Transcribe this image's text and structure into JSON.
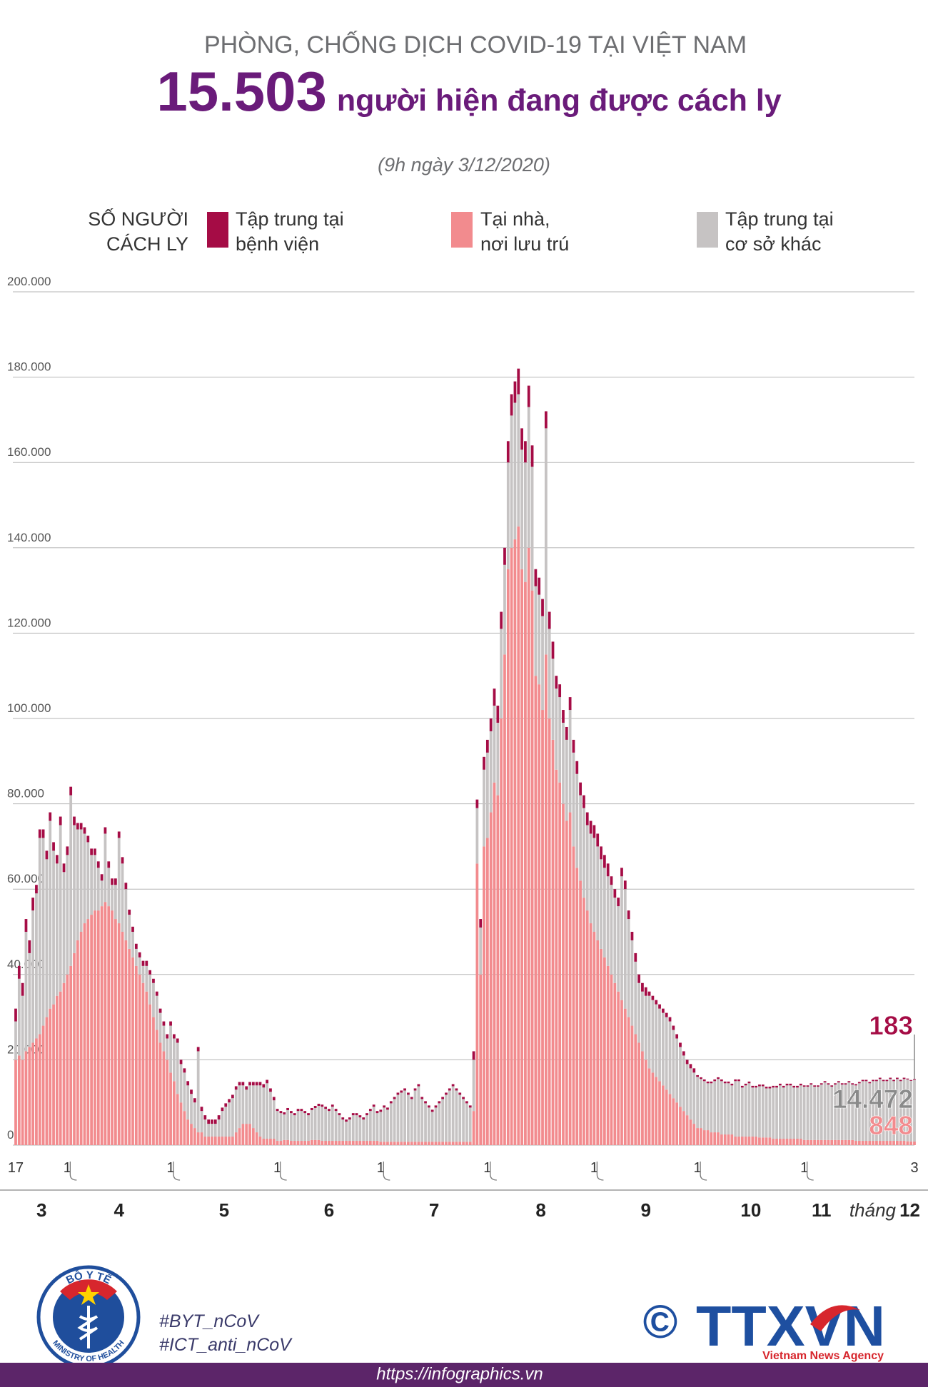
{
  "chart_data": {
    "type": "stacked_bar",
    "supertitle": "PHÒNG, CHỐNG DỊCH COVID-19 TẠI VIỆT NAM",
    "title_number": "15.503",
    "title_text": "người hiện đang được cách ly",
    "subtitle": "(9h ngày 3/12/2020)",
    "y_label": "SỐ NGƯỜI\nCÁCH LY",
    "ylim": [
      0,
      200000
    ],
    "yticks": [
      0,
      {
        "value": 20000,
        "label": "20.000"
      },
      {
        "value": 40000,
        "label": "40.000"
      },
      {
        "value": 60000,
        "label": "60.000"
      },
      {
        "value": 80000,
        "label": "80.000"
      },
      {
        "value": 100000,
        "label": "100.000"
      },
      {
        "value": 120000,
        "label": "120.000"
      },
      {
        "value": 140000,
        "label": "140.000"
      },
      {
        "value": 160000,
        "label": "160.000"
      },
      {
        "value": 180000,
        "label": "180.000"
      },
      {
        "value": 200000,
        "label": "200.000"
      }
    ],
    "grid": true,
    "months": [
      "3",
      "4",
      "5",
      "6",
      "7",
      "8",
      "9",
      "10",
      "11",
      "12"
    ],
    "month_word": "tháng",
    "categories": [
      "17",
      null,
      null,
      null,
      null,
      null,
      null,
      null,
      null,
      null,
      null,
      null,
      null,
      null,
      null,
      "1",
      null,
      null,
      null,
      null,
      null,
      null,
      null,
      null,
      null,
      null,
      null,
      null,
      null,
      null,
      null,
      null,
      null,
      null,
      null,
      null,
      null,
      null,
      null,
      null,
      null,
      null,
      null,
      null,
      null,
      "1",
      null,
      null,
      null,
      null,
      null,
      null,
      null,
      null,
      null,
      null,
      null,
      null,
      null,
      null,
      null,
      null,
      null,
      null,
      null,
      null,
      null,
      null,
      null,
      null,
      null,
      null,
      null,
      null,
      null,
      null,
      "1",
      null,
      null,
      null,
      null,
      null,
      null,
      null,
      null,
      null,
      null,
      null,
      null,
      null,
      null,
      null,
      null,
      null,
      null,
      null,
      null,
      null,
      null,
      null,
      null,
      null,
      null,
      null,
      null,
      null,
      "1",
      null,
      null,
      null,
      null,
      null,
      null,
      null,
      null,
      null,
      null,
      null,
      null,
      null,
      null,
      null,
      null,
      null,
      null,
      null,
      null,
      null,
      null,
      null,
      null,
      null,
      null,
      null,
      null,
      null,
      null,
      "1",
      null,
      null,
      null,
      null,
      null,
      null,
      null,
      null,
      null,
      null,
      null,
      null,
      null,
      null,
      null,
      null,
      null,
      null,
      null,
      null,
      null,
      null,
      null,
      null,
      null,
      null,
      null,
      null,
      null,
      null,
      "1",
      null,
      null,
      null,
      null,
      null,
      null,
      null,
      null,
      null,
      null,
      null,
      null,
      null,
      null,
      null,
      null,
      null,
      null,
      null,
      null,
      null,
      null,
      null,
      null,
      null,
      null,
      null,
      null,
      null,
      "1",
      null,
      null,
      null,
      null,
      null,
      null,
      null,
      null,
      null,
      null,
      null,
      null,
      null,
      null,
      null,
      null,
      null,
      null,
      null,
      null,
      null,
      null,
      null,
      null,
      null,
      null,
      null,
      null,
      null,
      null,
      "1",
      null,
      null,
      null,
      null,
      null,
      null,
      null,
      null,
      null,
      null,
      null,
      null,
      null,
      null,
      null,
      null,
      null,
      null,
      null,
      null,
      null,
      null,
      null,
      null,
      null,
      null,
      null,
      null,
      null,
      null,
      null,
      "3"
    ],
    "series": [
      {
        "name": "Tập trung tại\nbệnh viện",
        "color": "#a50c45",
        "last_label": "183",
        "values": [
          3000,
          3000,
          3000,
          3000,
          3000,
          3000,
          2000,
          2000,
          2000,
          2000,
          2000,
          2000,
          2000,
          2000,
          2000,
          2000,
          2000,
          2000,
          1500,
          1500,
          1500,
          1500,
          1500,
          1500,
          1500,
          1500,
          1500,
          1500,
          1500,
          1500,
          1500,
          1500,
          1500,
          1200,
          1200,
          1200,
          1200,
          1200,
          1200,
          1000,
          1000,
          1000,
          1000,
          1000,
          1000,
          1000,
          1000,
          1000,
          1000,
          1000,
          1000,
          1000,
          1000,
          1000,
          1000,
          1000,
          1000,
          1000,
          1000,
          1000,
          800,
          800,
          800,
          800,
          800,
          800,
          800,
          800,
          800,
          800,
          800,
          800,
          800,
          800,
          800,
          800,
          500,
          500,
          500,
          500,
          500,
          500,
          500,
          500,
          500,
          500,
          500,
          500,
          500,
          500,
          500,
          500,
          500,
          500,
          500,
          500,
          500,
          500,
          500,
          500,
          500,
          500,
          500,
          500,
          500,
          500,
          500,
          500,
          500,
          500,
          500,
          500,
          500,
          500,
          500,
          500,
          500,
          500,
          500,
          500,
          500,
          500,
          500,
          500,
          500,
          500,
          500,
          500,
          500,
          500,
          500,
          500,
          500,
          2000,
          2000,
          2000,
          3000,
          3000,
          3000,
          4000,
          4000,
          4000,
          4000,
          5000,
          5000,
          5000,
          6000,
          5000,
          5000,
          5000,
          5000,
          4000,
          4000,
          4000,
          4000,
          4000,
          4000,
          3000,
          3000,
          3000,
          3000,
          3000,
          3000,
          3000,
          3000,
          3000,
          3000,
          3000,
          3000,
          3000,
          3000,
          3000,
          3000,
          2000,
          2000,
          2000,
          2000,
          2000,
          2000,
          2000,
          2000,
          2000,
          2000,
          2000,
          1000,
          1000,
          1000,
          1000,
          1000,
          1000,
          1000,
          1000,
          1000,
          1000,
          1000,
          1000,
          1000,
          1000,
          400,
          400,
          400,
          400,
          400,
          400,
          400,
          400,
          400,
          400,
          400,
          400,
          400,
          400,
          400,
          400,
          400,
          400,
          400,
          400,
          400,
          400,
          400,
          400,
          400,
          400,
          400,
          400,
          400,
          400,
          400,
          300,
          300,
          300,
          300,
          300,
          300,
          300,
          300,
          300,
          300,
          300,
          300,
          300,
          300,
          300,
          300,
          300,
          300,
          300,
          300,
          300,
          300,
          300,
          300,
          300,
          300,
          300,
          300,
          300,
          300,
          200,
          190,
          183
        ]
      },
      {
        "name": "Tại nhà,\nnơi lưu trú",
        "color": "#f28b8e",
        "last_label": "848",
        "values": [
          20000,
          21000,
          20000,
          22000,
          23000,
          24000,
          25000,
          26000,
          28000,
          30000,
          32000,
          33000,
          35000,
          36000,
          38000,
          40000,
          42000,
          45000,
          48000,
          50000,
          52000,
          53000,
          54000,
          55000,
          55000,
          56000,
          57000,
          56000,
          55000,
          53000,
          52000,
          50000,
          48000,
          46000,
          44000,
          42000,
          40000,
          38000,
          36000,
          33000,
          30000,
          27000,
          24000,
          22000,
          20000,
          17000,
          15000,
          12000,
          10000,
          8000,
          6000,
          5000,
          4000,
          3000,
          3000,
          2000,
          2000,
          2000,
          2000,
          2000,
          2000,
          2000,
          2000,
          2000,
          3000,
          4000,
          5000,
          5000,
          5000,
          4000,
          3000,
          2000,
          1500,
          1500,
          1500,
          1500,
          1000,
          1000,
          1200,
          1200,
          1000,
          1000,
          1000,
          1000,
          1000,
          1000,
          1200,
          1200,
          1200,
          1000,
          1000,
          1000,
          1000,
          1000,
          1000,
          1000,
          1000,
          1000,
          1000,
          1000,
          1000,
          1000,
          1000,
          1000,
          1000,
          1000,
          800,
          800,
          800,
          800,
          800,
          800,
          800,
          800,
          800,
          800,
          800,
          800,
          800,
          800,
          800,
          800,
          800,
          800,
          800,
          800,
          800,
          800,
          800,
          800,
          800,
          800,
          800,
          8000,
          66000,
          40000,
          70000,
          72000,
          78000,
          85000,
          82000,
          100000,
          115000,
          135000,
          140000,
          142000,
          145000,
          135000,
          132000,
          140000,
          130000,
          110000,
          108000,
          102000,
          115000,
          100000,
          95000,
          88000,
          85000,
          80000,
          76000,
          78000,
          70000,
          65000,
          62000,
          58000,
          55000,
          52000,
          50000,
          48000,
          46000,
          44000,
          42000,
          40000,
          38000,
          36000,
          34000,
          32000,
          30000,
          28000,
          26000,
          24000,
          22000,
          20000,
          18000,
          17000,
          16000,
          15000,
          14000,
          13000,
          12000,
          11000,
          10000,
          9000,
          8000,
          7000,
          6000,
          5000,
          4000,
          4000,
          3500,
          3500,
          3000,
          3000,
          3000,
          2500,
          2500,
          2500,
          2500,
          2000,
          2000,
          2000,
          2000,
          2000,
          2000,
          2000,
          1800,
          1800,
          1800,
          1800,
          1500,
          1500,
          1500,
          1500,
          1500,
          1500,
          1500,
          1500,
          1500,
          1200,
          1200,
          1200,
          1200,
          1200,
          1200,
          1200,
          1200,
          1200,
          1200,
          1200,
          1200,
          1200,
          1200,
          1200,
          1000,
          1000,
          1000,
          1000,
          1000,
          1000,
          1000,
          1000,
          1000,
          1000,
          1000,
          1000,
          1000,
          1000,
          1000,
          900,
          870,
          848
        ]
      },
      {
        "name": "Tập trung tại\ncơ sở khác",
        "color": "#c6c3c3",
        "last_label": "14.472",
        "values": [
          9000,
          18000,
          15000,
          28000,
          22000,
          31000,
          34000,
          46000,
          44000,
          37000,
          44000,
          36000,
          31000,
          39000,
          26000,
          28000,
          40000,
          30000,
          26000,
          24000,
          21000,
          18000,
          14000,
          13000,
          10000,
          6000,
          16000,
          9000,
          6000,
          8000,
          20000,
          16000,
          12000,
          8000,
          6000,
          4000,
          4000,
          4000,
          6000,
          7000,
          8000,
          8000,
          7000,
          6000,
          5000,
          11000,
          10000,
          12000,
          9000,
          9000,
          8000,
          7000,
          6000,
          19000,
          5000,
          4000,
          3000,
          3000,
          3000,
          4000,
          6000,
          7000,
          8000,
          9000,
          10000,
          10000,
          9000,
          8000,
          9000,
          10000,
          11000,
          12000,
          12000,
          13000,
          11000,
          9000,
          7000,
          6500,
          6000,
          7000,
          6500,
          6000,
          7000,
          7000,
          6500,
          6000,
          7000,
          7500,
          8000,
          8000,
          7500,
          7000,
          8000,
          7000,
          6000,
          5000,
          4500,
          5000,
          6000,
          6000,
          5500,
          5000,
          6000,
          7000,
          8000,
          6500,
          7000,
          8000,
          7500,
          9000,
          10000,
          11000,
          11500,
          12000,
          11000,
          10000,
          12000,
          13000,
          10000,
          9000,
          8000,
          7000,
          8000,
          9000,
          10000,
          11000,
          12000,
          13000,
          12000,
          11000,
          10000,
          9000,
          8000,
          12000,
          13000,
          11000,
          18000,
          20000,
          19000,
          18000,
          17000,
          21000,
          21000,
          25000,
          31000,
          32000,
          31000,
          28000,
          28000,
          33000,
          29000,
          21000,
          21000,
          22000,
          53000,
          21000,
          19000,
          19000,
          20000,
          19000,
          19000,
          24000,
          22000,
          22000,
          20000,
          21000,
          20000,
          21000,
          22000,
          22000,
          21000,
          21000,
          21000,
          21000,
          20000,
          20000,
          29000,
          28000,
          23000,
          20000,
          17000,
          14000,
          14000,
          15000,
          17000,
          17000,
          17000,
          17000,
          17000,
          17000,
          17000,
          16000,
          15000,
          14000,
          13000,
          12000,
          12000,
          12000,
          12000,
          11500,
          11500,
          11000,
          11500,
          12000,
          12500,
          12500,
          12000,
          12000,
          11500,
          13000,
          13000,
          11500,
          12000,
          12500,
          11500,
          11500,
          12000,
          12000,
          11500,
          11500,
          12000,
          12000,
          12500,
          12000,
          12500,
          12500,
          12000,
          12000,
          12500,
          12500,
          12500,
          13000,
          12500,
          12500,
          13000,
          13500,
          13000,
          12500,
          13000,
          13500,
          13000,
          13000,
          13500,
          13000,
          13000,
          13500,
          14000,
          14000,
          13500,
          14000,
          14000,
          14500,
          14000,
          14000,
          14500,
          14000,
          14500,
          14000,
          14500,
          14500,
          14200,
          14472
        ]
      }
    ]
  },
  "footer": {
    "ministry_top": "BỘ Y TẾ",
    "ministry_bottom": "MINISTRY OF HEALTH",
    "hashtags": [
      "#BYT_nCoV",
      "#ICT_anti_nCoV"
    ],
    "copyright": "©",
    "agency": "TTXVN",
    "agency_name": "Vietnam News Agency",
    "url": "https://infographics.vn"
  }
}
